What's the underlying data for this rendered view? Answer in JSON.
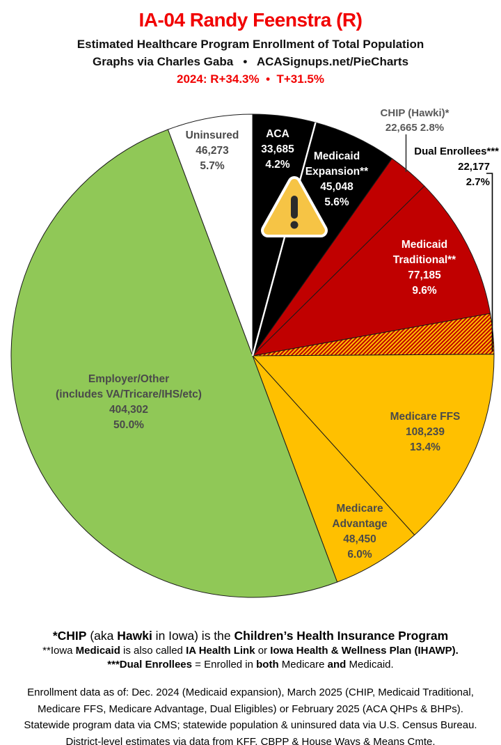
{
  "header": {
    "title": "IA-04 Randy Feenstra (R)",
    "subtitle": "Estimated Healthcare Program Enrollment of Total Population",
    "credit_line": "Graphs via Charles Gaba   •   ACASignups.net/PieCharts",
    "partisan_line": "2024: R+34.3%  •  T+31.5%",
    "title_color": "#f10000"
  },
  "chart_data": {
    "type": "pie",
    "direction": "clockwise",
    "start_angle_deg": 0,
    "legend_position": "labels-on-slices",
    "hatch": {
      "bg": "#FFC000",
      "stripe": "#C00000"
    },
    "slices": [
      {
        "id": "aca",
        "name": "ACA",
        "name_lines": [
          "ACA"
        ],
        "value": "33,685",
        "value_num": 33685,
        "pct": "4.2%",
        "pct_num": 4.2,
        "fill": "#000000",
        "label_color": "#ffffff"
      },
      {
        "id": "medicaid-expansion",
        "name": "Medicaid Expansion**",
        "name_lines": [
          "Medicaid",
          "Expansion**"
        ],
        "value": "45,048",
        "value_num": 45048,
        "pct": "5.6%",
        "pct_num": 5.6,
        "fill": "#000000",
        "label_color": "#ffffff",
        "separator_before": "white"
      },
      {
        "id": "chip",
        "name": "CHIP (Hawki)*",
        "name_lines": [
          "CHIP (Hawki)*"
        ],
        "value": "22,665",
        "value_num": 22665,
        "pct": "2.8%",
        "pct_num": 2.8,
        "fill": "#C00000",
        "label_color": "#595959",
        "label_outside": true
      },
      {
        "id": "medicaid-traditional",
        "name": "Medicaid Traditional**",
        "name_lines": [
          "Medicaid",
          "Traditional**"
        ],
        "value": "77,185",
        "value_num": 77185,
        "pct": "9.6%",
        "pct_num": 9.6,
        "fill": "#C00000",
        "label_color": "#ffffff"
      },
      {
        "id": "dual-enrollees",
        "name": "Dual Enrollees***",
        "name_lines": [
          "Dual Enrollees***"
        ],
        "value": "22,177",
        "value_num": 22177,
        "pct": "2.7%",
        "pct_num": 2.7,
        "fill": "hatch",
        "label_color": "#000000",
        "label_outside": true
      },
      {
        "id": "medicare-ffs",
        "name": "Medicare FFS",
        "name_lines": [
          "Medicare FFS"
        ],
        "value": "108,239",
        "value_num": 108239,
        "pct": "13.4%",
        "pct_num": 13.4,
        "fill": "#FFC000",
        "label_color": "#4a4a4a"
      },
      {
        "id": "medicare-advantage",
        "name": "Medicare Advantage",
        "name_lines": [
          "Medicare",
          "Advantage"
        ],
        "value": "48,450",
        "value_num": 48450,
        "pct": "6.0%",
        "pct_num": 6.0,
        "fill": "#FFC000",
        "label_color": "#4a4a4a"
      },
      {
        "id": "employer-other",
        "name": "Employer/Other (includes VA/Tricare/IHS/etc)",
        "name_lines": [
          "Employer/Other",
          "(includes VA/Tricare/IHS/etc)"
        ],
        "value": "404,302",
        "value_num": 404302,
        "pct": "50.0%",
        "pct_num": 50.0,
        "fill": "#90C857",
        "label_color": "#4a4a4a"
      },
      {
        "id": "uninsured",
        "name": "Uninsured",
        "name_lines": [
          "Uninsured"
        ],
        "value": "46,273",
        "value_num": 46273,
        "pct": "5.7%",
        "pct_num": 5.7,
        "fill": "#FFFFFF",
        "label_color": "#4a4a4a"
      }
    ]
  },
  "warning_icon": {
    "name": "warning-triangle-icon",
    "triangle_fill": "#F6C445",
    "outline": "#ffffff",
    "exclamation_color": "#2b2b2b"
  },
  "footnotes": {
    "lines": [
      {
        "segments": [
          {
            "t": "*CHIP",
            "b": true
          },
          {
            "t": " (aka ",
            "b": false
          },
          {
            "t": "Hawki",
            "b": true
          },
          {
            "t": " in Iowa) is the ",
            "b": false
          },
          {
            "t": "Children’s Health Insurance Program",
            "b": true
          }
        ]
      },
      {
        "segments": [
          {
            "t": "**Iowa ",
            "b": false
          },
          {
            "t": "Medicaid",
            "b": true
          },
          {
            "t": " is also called ",
            "b": false
          },
          {
            "t": "IA Health Link",
            "b": true
          },
          {
            "t": " or ",
            "b": false
          },
          {
            "t": "Iowa Health & Wellness Plan (IHAWP).",
            "b": true
          }
        ]
      },
      {
        "segments": [
          {
            "t": "***Dual Enrollees",
            "b": true
          },
          {
            "t": " = Enrolled in ",
            "b": false
          },
          {
            "t": "both",
            "b": true
          },
          {
            "t": " Medicare ",
            "b": false
          },
          {
            "t": "and",
            "b": true
          },
          {
            "t": " Medicaid.",
            "b": false
          }
        ]
      }
    ]
  },
  "sources": {
    "lines": [
      "Enrollment data as of: Dec. 2024 (Medicaid expansion), March 2025 (CHIP, Medicaid Traditional,",
      "Medicare FFS, Medicare Advantage, Dual Eligibles) or February 2025 (ACA QHPs & BHPs).",
      "Statewide program data via CMS; statewide population & uninsured data via U.S. Census Bureau.",
      "District-level estimates via data from KFF, CBPP & House Ways & Means Cmte."
    ]
  }
}
